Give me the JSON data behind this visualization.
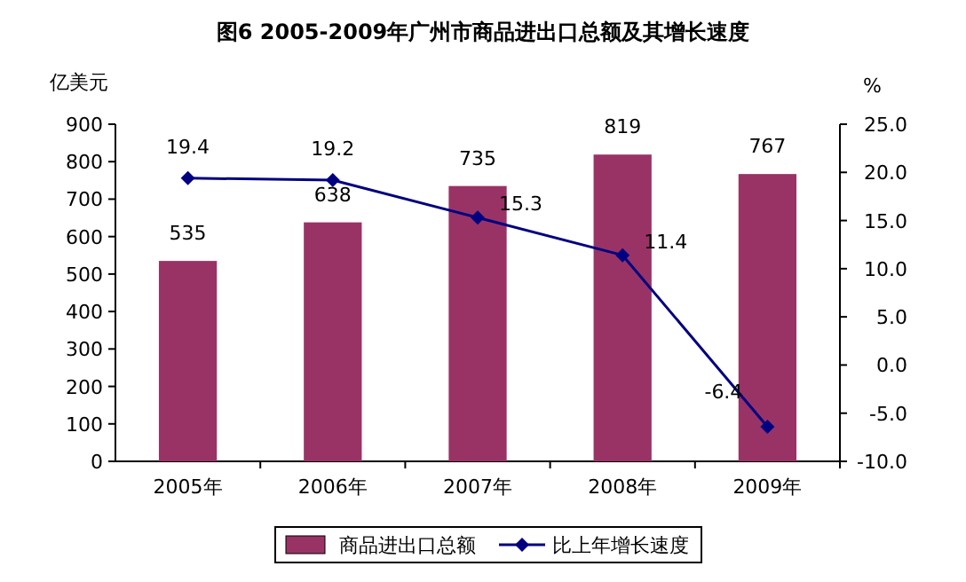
{
  "chart_data": {
    "type": "bar",
    "title": "图6  2005-2009年广州市商品进出口总额及其增长速度",
    "ylabel": "亿美元",
    "y2label": "%",
    "categories": [
      "2005年",
      "2006年",
      "2007年",
      "2008年",
      "2009年"
    ],
    "series": [
      {
        "name": "商品进出口总额",
        "color": "#993366",
        "values": [
          535,
          638,
          735,
          819,
          767
        ]
      },
      {
        "name": "比上年增长速度",
        "type": "line",
        "axis": "y2",
        "color": "#000080",
        "marker": "diamond",
        "values": [
          19.4,
          19.2,
          15.3,
          11.4,
          -6.4
        ]
      }
    ],
    "ylim": [
      0,
      900
    ],
    "yticks": [
      0,
      100,
      200,
      300,
      400,
      500,
      600,
      700,
      800,
      900
    ],
    "y2lim": [
      -10,
      25
    ],
    "y2ticks": [
      {
        "value": -10,
        "label": "-10.0"
      },
      {
        "value": -5,
        "label": "-5.0"
      },
      {
        "value": 0,
        "label": "0.0"
      },
      {
        "value": 5,
        "label": "5.0"
      },
      {
        "value": 10,
        "label": "10.0"
      },
      {
        "value": 15,
        "label": "15.0"
      },
      {
        "value": 20,
        "label": "20.0"
      },
      {
        "value": 25,
        "label": "25.0"
      }
    ],
    "data_labels": true,
    "legend": "bottom",
    "grid": false
  }
}
